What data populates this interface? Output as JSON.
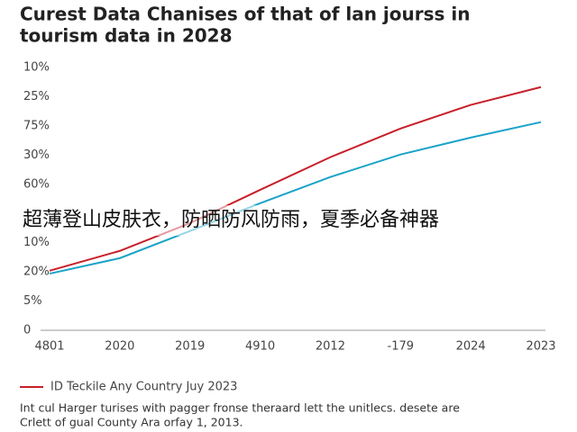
{
  "chart_data": {
    "type": "line",
    "title": [
      "Curest Data Chanises of that of lan jourss in",
      "tourism data in 2028"
    ],
    "categories": [
      "4801",
      "2020",
      "2019",
      "4910",
      "2012",
      "-179",
      "2024",
      "2023"
    ],
    "series": [
      {
        "name": "ID Teckile Any Country Juy 2023",
        "color": "#c8202a",
        "values": [
          2.04,
          2.72,
          3.67,
          4.81,
          5.93,
          6.91,
          7.72,
          8.33
        ]
      },
      {
        "color": "#1aa3c8",
        "values": [
          1.94,
          2.47,
          3.4,
          4.35,
          5.25,
          6.02,
          6.6,
          7.13
        ]
      }
    ],
    "ylim": [
      0,
      9
    ],
    "yticks": [
      0,
      {
        "value": 1,
        "label": "5%"
      },
      {
        "value": 2,
        "label": "20%"
      },
      {
        "value": 3,
        "label": "10%"
      },
      {
        "value": 5,
        "label": "60%"
      },
      {
        "value": 6,
        "label": "30%"
      },
      {
        "value": 7,
        "label": "75%"
      },
      {
        "value": 8,
        "label": "25%"
      },
      {
        "value": 9,
        "label": "10%"
      }
    ],
    "annotation": "超薄登山皮肤衣，防晒防风防雨，夏季必备神器",
    "footnote": [
      "Int cul Harger turises with pagger fronse theraard lett the unitlecs. desete are",
      "Crlett of gual County Ara orfay 1, 2013."
    ]
  }
}
